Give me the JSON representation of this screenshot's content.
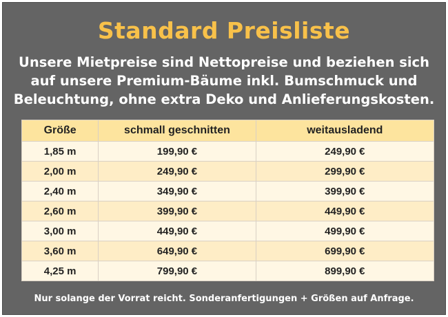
{
  "title": "Standard Preisliste",
  "intro": {
    "line1": "Unsere Mietpreise sind Nettopreise und beziehen sich",
    "line2": "auf unsere Premium-Bäume inkl. Bumschmuck und",
    "line3": "Beleuchtung, ohne extra Deko und Anlieferungskosten."
  },
  "table": {
    "headers": [
      "Größe",
      "schmall geschnitten",
      "weitausladend"
    ],
    "rows": [
      [
        "1,85 m",
        "199,90 €",
        "249,90 €"
      ],
      [
        "2,00 m",
        "249,90 €",
        "299,90 €"
      ],
      [
        "2,40 m",
        "349,90 €",
        "399,90 €"
      ],
      [
        "2,60 m",
        "399,90 €",
        "449,90 €"
      ],
      [
        "3,00 m",
        "449,90 €",
        "499,90 €"
      ],
      [
        "3,60 m",
        "649,90 €",
        "699,90 €"
      ],
      [
        "4,25 m",
        "799,90 €",
        "899,90 €"
      ]
    ]
  },
  "footnote": "Nur solange der Vorrat reicht. Sonderanfertigungen + Größen auf Anfrage.",
  "colors": {
    "background": "#646464",
    "title": "#f8c14a",
    "header_bg": "#fde49e",
    "row_light": "#fff7e4",
    "row_dark": "#feedc6"
  }
}
